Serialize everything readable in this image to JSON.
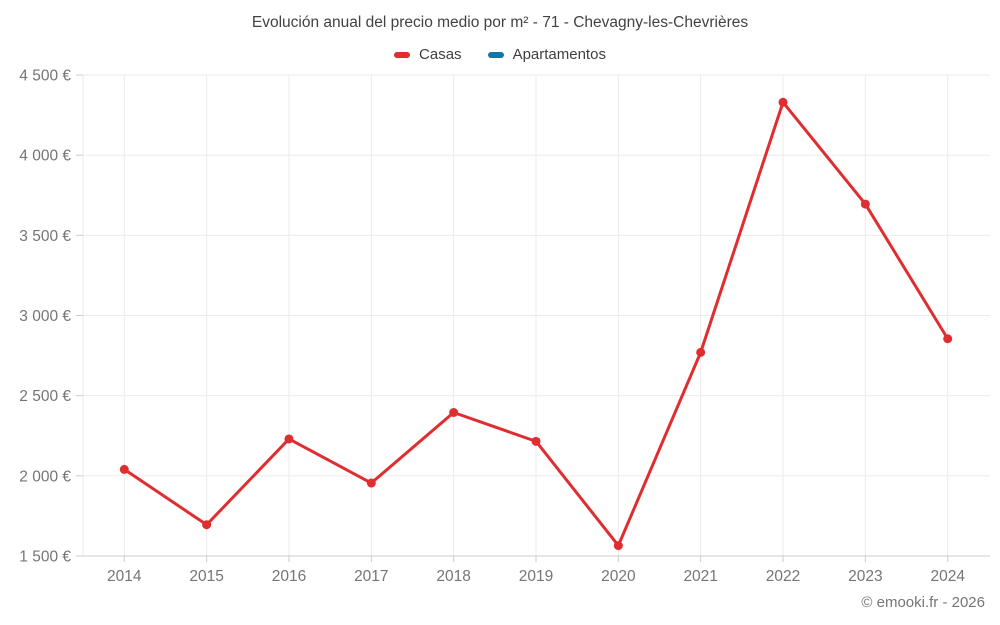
{
  "chart_data": {
    "type": "line",
    "title": "Evolución anual del precio medio por m² - 71 - Chevagny-les-Chevrières",
    "categories": [
      "2014",
      "2015",
      "2016",
      "2017",
      "2018",
      "2019",
      "2020",
      "2021",
      "2022",
      "2023",
      "2024"
    ],
    "series": [
      {
        "name": "Casas",
        "color": "#e02d30",
        "values": [
          2040,
          1695,
          2230,
          1955,
          2395,
          2215,
          1565,
          2770,
          4330,
          3695,
          2855
        ]
      },
      {
        "name": "Apartamentos",
        "color": "#1574a6",
        "values": []
      }
    ],
    "xlabel": "",
    "ylabel": "",
    "ylim": [
      1500,
      4500
    ],
    "ytick_step": 500,
    "ytick_labels": [
      "1 500 €",
      "2 000 €",
      "2 500 €",
      "3 000 €",
      "3 500 €",
      "4 000 €",
      "4 500 €"
    ],
    "grid": true,
    "legend_position": "top",
    "grid_color": "#ebebeb",
    "axis_color": "#cccccc",
    "tick_label_color": "#757575"
  },
  "footer": {
    "credit": "© emooki.fr - 2026"
  }
}
